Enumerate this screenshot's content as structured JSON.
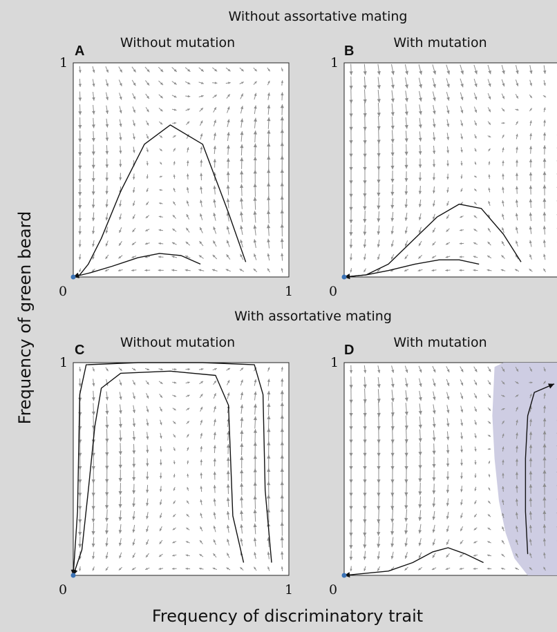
{
  "titles": {
    "top": "Without assortative mating",
    "middle": "With assortative mating"
  },
  "axis": {
    "ylabel": "Frequency of green beard",
    "xlabel": "Frequency of discriminatory trait"
  },
  "colors": {
    "background": "#d9d9d9",
    "panel": "#ffffff",
    "arrow": "#8c8c8c",
    "curve": "#111111",
    "point": "#3a72b5",
    "basin": "#c9c8e0"
  },
  "panels": [
    {
      "id": "A",
      "letter": "A",
      "subtitle": "Without mutation",
      "x_ticks": [
        "0",
        "1"
      ],
      "y_ticks": [
        "1"
      ],
      "vector_field_model": "no_assortative_no_mutation",
      "trajectories": [
        {
          "x": [
            0.8,
            0.72,
            0.6,
            0.45,
            0.33,
            0.22,
            0.13,
            0.07,
            0.03,
            0.0
          ],
          "y": [
            0.07,
            0.3,
            0.62,
            0.71,
            0.62,
            0.4,
            0.18,
            0.06,
            0.01,
            0.0
          ],
          "arrow_end": true
        },
        {
          "x": [
            0.59,
            0.5,
            0.4,
            0.3,
            0.18,
            0.08,
            0.0
          ],
          "y": [
            0.06,
            0.1,
            0.11,
            0.09,
            0.05,
            0.02,
            0.0
          ],
          "arrow_end": true
        }
      ],
      "equilibria": [
        {
          "x": 0.0,
          "y": 0.0
        }
      ]
    },
    {
      "id": "B",
      "letter": "B",
      "subtitle": "With mutation",
      "x_ticks": [
        "0",
        "1"
      ],
      "y_ticks": [
        "1"
      ],
      "vector_field_model": "no_assortative_with_mutation",
      "trajectories": [
        {
          "x": [
            0.8,
            0.72,
            0.62,
            0.52,
            0.42,
            0.31,
            0.2,
            0.1,
            0.0
          ],
          "y": [
            0.07,
            0.2,
            0.32,
            0.34,
            0.28,
            0.17,
            0.06,
            0.01,
            0.0
          ],
          "arrow_end": true
        },
        {
          "x": [
            0.61,
            0.52,
            0.43,
            0.32,
            0.2,
            0.1,
            0.0
          ],
          "y": [
            0.06,
            0.08,
            0.08,
            0.06,
            0.03,
            0.01,
            0.0
          ],
          "arrow_end": true
        }
      ],
      "equilibria": [
        {
          "x": 0.0,
          "y": 0.0
        }
      ]
    },
    {
      "id": "C",
      "letter": "C",
      "subtitle": "Without mutation",
      "x_ticks": [
        "0",
        "1"
      ],
      "y_ticks": [
        "1"
      ],
      "vector_field_model": "assortative_no_mutation",
      "trajectories": [
        {
          "x": [
            0.92,
            0.89,
            0.88,
            0.84,
            0.6,
            0.3,
            0.06,
            0.03,
            0.02,
            0.0
          ],
          "y": [
            0.06,
            0.4,
            0.85,
            0.99,
            1.0,
            1.0,
            0.99,
            0.85,
            0.3,
            0.0
          ],
          "arrow_end": true
        },
        {
          "x": [
            0.79,
            0.74,
            0.72,
            0.66,
            0.45,
            0.22,
            0.13,
            0.1,
            0.07,
            0.04,
            0.0
          ],
          "y": [
            0.06,
            0.28,
            0.8,
            0.94,
            0.96,
            0.95,
            0.88,
            0.7,
            0.4,
            0.12,
            0.0
          ],
          "arrow_end": true
        }
      ],
      "equilibria": [
        {
          "x": 0.0,
          "y": 0.0
        }
      ]
    },
    {
      "id": "D",
      "letter": "D",
      "subtitle": "With mutation",
      "x_ticks": [
        "0",
        "1"
      ],
      "y_ticks": [
        "1"
      ],
      "vector_field_model": "assortative_with_mutation",
      "trajectories": [
        {
          "x": [
            0.63,
            0.55,
            0.47,
            0.4,
            0.31,
            0.2,
            0.1,
            0.0
          ],
          "y": [
            0.06,
            0.1,
            0.13,
            0.11,
            0.06,
            0.02,
            0.01,
            0.0
          ],
          "arrow_end": true
        },
        {
          "x": [
            0.83,
            0.82,
            0.82,
            0.83,
            0.86,
            0.95
          ],
          "y": [
            0.1,
            0.3,
            0.55,
            0.75,
            0.86,
            0.9
          ],
          "arrow_end": true
        }
      ],
      "basin": {
        "x": [
          0.68,
          0.67,
          0.68,
          0.7,
          0.73,
          0.77,
          0.83,
          0.9,
          0.98,
          1.0,
          1.0,
          0.72,
          0.68
        ],
        "y": [
          0.98,
          0.75,
          0.55,
          0.35,
          0.2,
          0.08,
          0.0,
          0.0,
          0.0,
          0.0,
          1.0,
          1.0,
          0.98
        ]
      },
      "equilibria": [
        {
          "x": 0.0,
          "y": 0.0
        }
      ]
    }
  ]
}
